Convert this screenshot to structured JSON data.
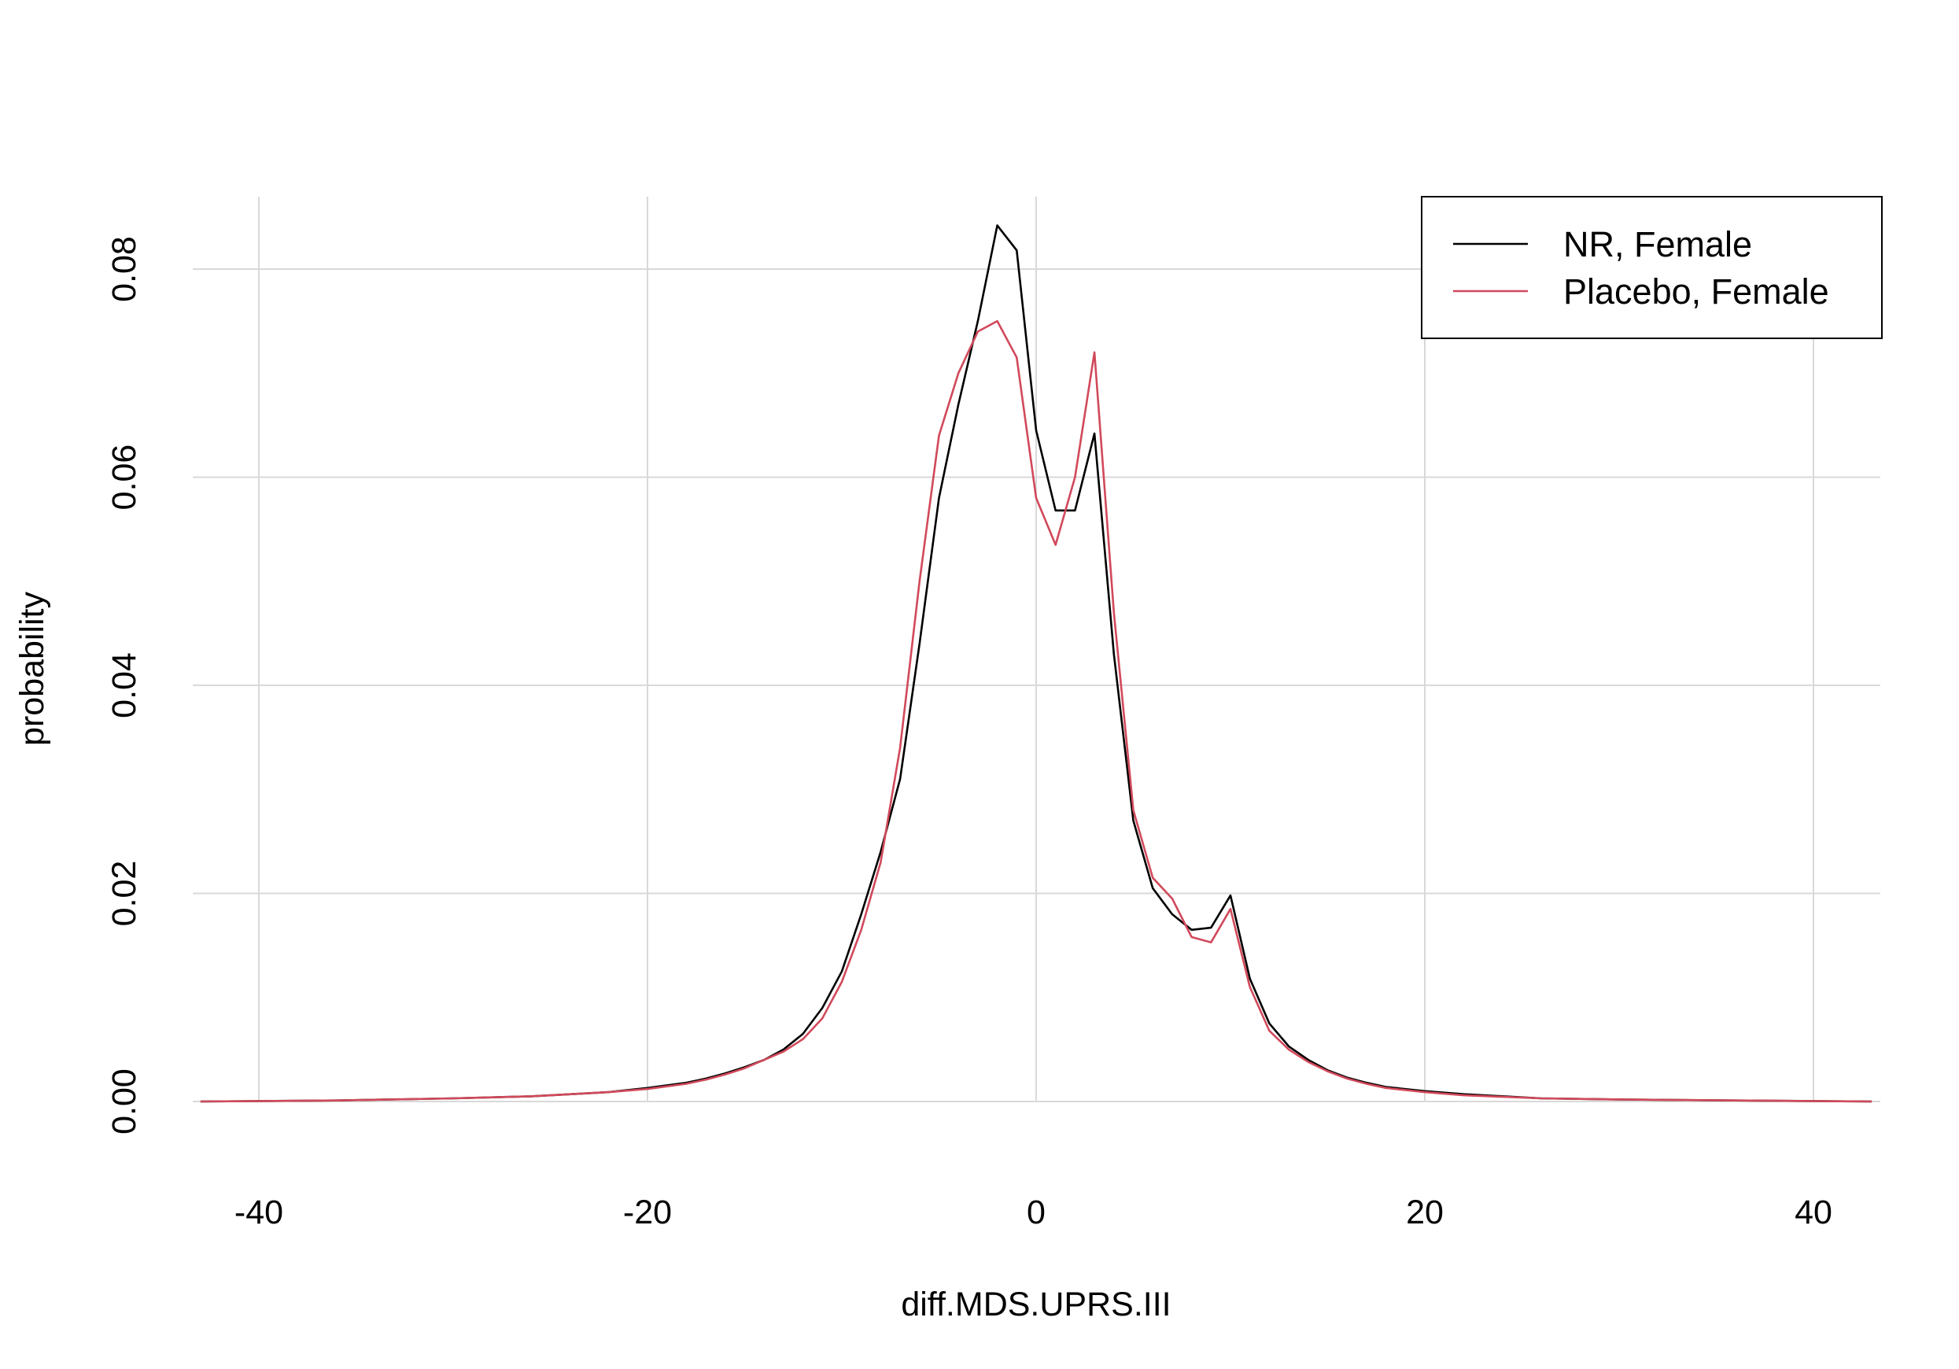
{
  "chart_data": {
    "type": "line",
    "xlabel": "diff.MDS.UPRS.III",
    "ylabel": "probability",
    "xlim": [
      -43,
      43
    ],
    "ylim": [
      0,
      0.085
    ],
    "x_ticks": [
      -40,
      -20,
      0,
      20,
      40
    ],
    "x_tick_labels": [
      "-40",
      "-20",
      "0",
      "20",
      "40"
    ],
    "y_ticks": [
      0,
      0.02,
      0.04,
      0.06,
      0.08
    ],
    "y_tick_labels": [
      "0.00",
      "0.02",
      "0.04",
      "0.06",
      "0.08"
    ],
    "grid": true,
    "legend_position": "top-right",
    "series": [
      {
        "name": "NR, Female",
        "color": "#000000",
        "points": [
          [
            -43,
            0
          ],
          [
            -36,
            0.0001
          ],
          [
            -30,
            0.0003
          ],
          [
            -26,
            0.0005
          ],
          [
            -22,
            0.0009
          ],
          [
            -20,
            0.0013
          ],
          [
            -18,
            0.0018
          ],
          [
            -17,
            0.0022
          ],
          [
            -16,
            0.0027
          ],
          [
            -15,
            0.0033
          ],
          [
            -14,
            0.004
          ],
          [
            -13,
            0.005
          ],
          [
            -12,
            0.0065
          ],
          [
            -11,
            0.009
          ],
          [
            -10,
            0.0125
          ],
          [
            -9,
            0.018
          ],
          [
            -8,
            0.024
          ],
          [
            -7,
            0.031
          ],
          [
            -6,
            0.044
          ],
          [
            -5,
            0.058
          ],
          [
            -4,
            0.067
          ],
          [
            -3,
            0.075
          ],
          [
            -2,
            0.0842
          ],
          [
            -1,
            0.0818
          ],
          [
            0,
            0.0645
          ],
          [
            1,
            0.0568
          ],
          [
            2,
            0.0568
          ],
          [
            3,
            0.0642
          ],
          [
            4,
            0.043
          ],
          [
            5,
            0.027
          ],
          [
            6,
            0.0205
          ],
          [
            7,
            0.018
          ],
          [
            8,
            0.0165
          ],
          [
            9,
            0.0167
          ],
          [
            10,
            0.0198
          ],
          [
            11,
            0.0118
          ],
          [
            12,
            0.0075
          ],
          [
            13,
            0.0053
          ],
          [
            14,
            0.004
          ],
          [
            15,
            0.003
          ],
          [
            16,
            0.0023
          ],
          [
            17,
            0.0018
          ],
          [
            18,
            0.0014
          ],
          [
            20,
            0.001
          ],
          [
            22,
            0.0007
          ],
          [
            26,
            0.0003
          ],
          [
            30,
            0.0002
          ],
          [
            36,
            0.0001
          ],
          [
            43,
            0
          ]
        ]
      },
      {
        "name": "Placebo, Female",
        "color": "#d1495b",
        "points": [
          [
            -43,
            0
          ],
          [
            -36,
            0.0001
          ],
          [
            -30,
            0.0003
          ],
          [
            -26,
            0.0005
          ],
          [
            -22,
            0.0009
          ],
          [
            -20,
            0.0012
          ],
          [
            -18,
            0.0017
          ],
          [
            -17,
            0.0021
          ],
          [
            -16,
            0.0026
          ],
          [
            -15,
            0.0032
          ],
          [
            -14,
            0.004
          ],
          [
            -13,
            0.0048
          ],
          [
            -12,
            0.006
          ],
          [
            -11,
            0.008
          ],
          [
            -10,
            0.0115
          ],
          [
            -9,
            0.0165
          ],
          [
            -8,
            0.023
          ],
          [
            -7,
            0.034
          ],
          [
            -6,
            0.05
          ],
          [
            -5,
            0.064
          ],
          [
            -4,
            0.07
          ],
          [
            -3,
            0.074
          ],
          [
            -2,
            0.075
          ],
          [
            -1,
            0.0715
          ],
          [
            0,
            0.058
          ],
          [
            1,
            0.0535
          ],
          [
            2,
            0.06
          ],
          [
            3,
            0.072
          ],
          [
            4,
            0.047
          ],
          [
            5,
            0.028
          ],
          [
            6,
            0.0215
          ],
          [
            7,
            0.0195
          ],
          [
            8,
            0.0158
          ],
          [
            9,
            0.0153
          ],
          [
            10,
            0.0185
          ],
          [
            11,
            0.011
          ],
          [
            12,
            0.0068
          ],
          [
            13,
            0.005
          ],
          [
            14,
            0.0038
          ],
          [
            15,
            0.0029
          ],
          [
            16,
            0.0022
          ],
          [
            17,
            0.0017
          ],
          [
            18,
            0.0013
          ],
          [
            20,
            0.0009
          ],
          [
            22,
            0.0006
          ],
          [
            26,
            0.0003
          ],
          [
            30,
            0.0002
          ],
          [
            36,
            0.0001
          ],
          [
            43,
            0
          ]
        ]
      }
    ]
  }
}
